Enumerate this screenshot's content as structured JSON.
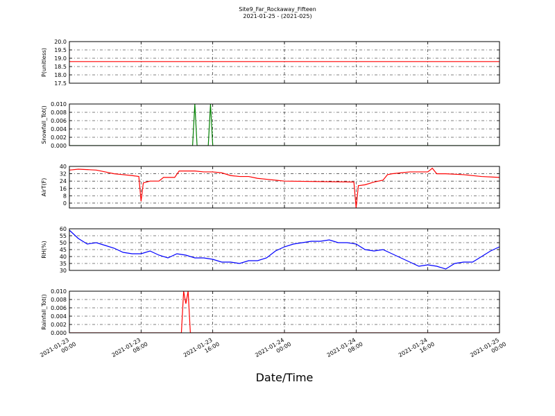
{
  "figure": {
    "title": "Site9_Far_Rockaway_Fifteen",
    "subtitle": "2021-01-25 - (2021-025)",
    "xlabel": "Date/Time"
  },
  "chart_data": [
    {
      "type": "line",
      "ylabel": "P(unitless)",
      "color": "#ff0000",
      "grid": true,
      "x": [
        "2021-01-23 00:00",
        "2021-01-25 00:00"
      ],
      "values": [
        18.8,
        18.8
      ],
      "xlim": [
        "2021-01-23 00:00",
        "2021-01-25 00:00"
      ],
      "xticks": [
        "2021-01-23 00:00",
        "2021-01-23 08:00",
        "2021-01-23 16:00",
        "2021-01-24 00:00",
        "2021-01-24 08:00",
        "2021-01-24 16:00",
        "2021-01-25 00:00"
      ],
      "ylim": [
        17.5,
        20
      ],
      "yticks": [
        17.5,
        {
          "value": 18,
          "label": "18.0"
        },
        18.5,
        {
          "value": 19,
          "label": "19.0"
        },
        19.5,
        {
          "value": 20,
          "label": "20.0"
        }
      ]
    },
    {
      "type": "line",
      "ylabel": "Snowfall_Tot()",
      "color": "#007f00",
      "grid": true,
      "x": [
        "2021-01-23 00:00",
        "2021-01-23 13:45",
        "2021-01-23 14:00",
        "2021-01-23 14:15",
        "2021-01-23 15:30",
        "2021-01-23 15:45",
        "2021-01-23 16:00",
        "2021-01-25 00:00"
      ],
      "values": [
        0,
        0,
        0.01,
        0,
        0,
        0.01,
        0,
        0
      ],
      "xlim": [
        "2021-01-23 00:00",
        "2021-01-25 00:00"
      ],
      "xticks": [
        "2021-01-23 00:00",
        "2021-01-23 08:00",
        "2021-01-23 16:00",
        "2021-01-24 00:00",
        "2021-01-24 08:00",
        "2021-01-24 16:00",
        "2021-01-25 00:00"
      ],
      "ylim": [
        0,
        0.01
      ],
      "yticks": [
        {
          "value": 0,
          "label": "0.000"
        },
        {
          "value": 0.002,
          "label": "0.002"
        },
        {
          "value": 0.004,
          "label": "0.004"
        },
        {
          "value": 0.006,
          "label": "0.006"
        },
        {
          "value": 0.008,
          "label": "0.008"
        },
        {
          "value": 0.01,
          "label": "0.010"
        }
      ]
    },
    {
      "type": "line",
      "ylabel": "AirT(F)",
      "color": "#ff0000",
      "grid": true,
      "x": [
        "2021-01-23 00:00",
        "2021-01-23 01:00",
        "2021-01-23 03:00",
        "2021-01-23 04:00",
        "2021-01-23 05:00",
        "2021-01-23 06:00",
        "2021-01-23 07:00",
        "2021-01-23 07:45",
        "2021-01-23 08:00",
        "2021-01-23 08:15",
        "2021-01-23 09:00",
        "2021-01-23 10:00",
        "2021-01-23 10:30",
        "2021-01-23 11:00",
        "2021-01-23 11:45",
        "2021-01-23 12:15",
        "2021-01-23 13:00",
        "2021-01-23 14:00",
        "2021-01-23 15:00",
        "2021-01-23 16:00",
        "2021-01-23 17:00",
        "2021-01-23 18:00",
        "2021-01-23 19:00",
        "2021-01-23 20:00",
        "2021-01-23 21:00",
        "2021-01-23 22:00",
        "2021-01-23 23:00",
        "2021-01-24 00:00",
        "2021-01-24 07:30",
        "2021-01-24 07:45",
        "2021-01-24 08:00",
        "2021-01-24 08:15",
        "2021-01-24 09:00",
        "2021-01-24 10:00",
        "2021-01-24 11:00",
        "2021-01-24 11:30",
        "2021-01-24 12:00",
        "2021-01-24 13:00",
        "2021-01-24 14:00",
        "2021-01-24 16:00",
        "2021-01-24 16:30",
        "2021-01-24 17:00",
        "2021-01-24 18:00",
        "2021-01-24 20:00",
        "2021-01-24 22:00",
        "2021-01-25 00:00"
      ],
      "values": [
        36,
        37,
        36,
        34,
        32,
        31,
        30,
        29,
        2,
        22,
        24,
        24,
        28,
        28,
        28,
        35,
        35,
        35,
        34,
        34,
        33,
        30,
        29,
        29,
        27,
        26,
        25,
        24,
        23,
        23,
        -5,
        19,
        20,
        23,
        25,
        31,
        32,
        33,
        34,
        34,
        38,
        32,
        32,
        31,
        29,
        28
      ],
      "xlim": [
        "2021-01-23 00:00",
        "2021-01-25 00:00"
      ],
      "xticks": [
        "2021-01-23 00:00",
        "2021-01-23 08:00",
        "2021-01-23 16:00",
        "2021-01-24 00:00",
        "2021-01-24 08:00",
        "2021-01-24 16:00",
        "2021-01-25 00:00"
      ],
      "ylim": [
        -5.3,
        40
      ],
      "yticks": [
        0,
        8,
        16,
        24,
        32,
        40
      ]
    },
    {
      "type": "line",
      "ylabel": "RH(%)",
      "color": "#0000ff",
      "grid": true,
      "x": [
        "2021-01-23 00:00",
        "2021-01-23 01:00",
        "2021-01-23 02:00",
        "2021-01-23 03:00",
        "2021-01-23 04:00",
        "2021-01-23 05:00",
        "2021-01-23 06:00",
        "2021-01-23 07:00",
        "2021-01-23 08:00",
        "2021-01-23 09:00",
        "2021-01-23 10:00",
        "2021-01-23 11:00",
        "2021-01-23 12:00",
        "2021-01-23 13:00",
        "2021-01-23 14:00",
        "2021-01-23 15:00",
        "2021-01-23 16:00",
        "2021-01-23 17:00",
        "2021-01-23 18:00",
        "2021-01-23 19:00",
        "2021-01-23 20:00",
        "2021-01-23 21:00",
        "2021-01-23 22:00",
        "2021-01-23 23:00",
        "2021-01-24 00:00",
        "2021-01-24 01:00",
        "2021-01-24 02:00",
        "2021-01-24 03:00",
        "2021-01-24 04:00",
        "2021-01-24 05:00",
        "2021-01-24 06:00",
        "2021-01-24 07:00",
        "2021-01-24 08:00",
        "2021-01-24 09:00",
        "2021-01-24 10:00",
        "2021-01-24 11:00",
        "2021-01-24 12:00",
        "2021-01-24 13:00",
        "2021-01-24 14:00",
        "2021-01-24 15:00",
        "2021-01-24 16:00",
        "2021-01-24 17:00",
        "2021-01-24 18:00",
        "2021-01-24 19:00",
        "2021-01-24 20:00",
        "2021-01-24 21:00",
        "2021-01-24 22:00",
        "2021-01-24 23:00",
        "2021-01-25 00:00"
      ],
      "values": [
        59,
        53,
        49,
        50,
        48,
        46,
        43,
        42,
        42,
        44,
        41,
        39,
        42,
        41,
        39,
        39,
        38,
        36,
        36,
        35,
        37,
        37,
        39,
        44,
        47,
        49,
        50,
        51,
        51,
        52,
        50,
        50,
        49,
        45,
        44,
        45,
        42,
        39,
        36,
        33,
        34,
        33,
        31,
        35,
        36,
        36,
        40,
        44,
        47
      ],
      "xlim": [
        "2021-01-23 00:00",
        "2021-01-25 00:00"
      ],
      "xticks": [
        "2021-01-23 00:00",
        "2021-01-23 08:00",
        "2021-01-23 16:00",
        "2021-01-24 00:00",
        "2021-01-24 08:00",
        "2021-01-24 16:00",
        "2021-01-25 00:00"
      ],
      "ylim": [
        30,
        60
      ],
      "yticks": [
        30,
        35,
        40,
        45,
        50,
        55,
        60
      ]
    },
    {
      "type": "line",
      "ylabel": "Rainfall_Tot()",
      "color": "#ff0000",
      "grid": true,
      "x": [
        "2021-01-23 00:00",
        "2021-01-23 12:30",
        "2021-01-23 12:45",
        "2021-01-23 13:00",
        "2021-01-23 13:15",
        "2021-01-23 13:30",
        "2021-01-25 00:00"
      ],
      "values": [
        0,
        0,
        0.01,
        0.007,
        0.01,
        0,
        0
      ],
      "xlim": [
        "2021-01-23 00:00",
        "2021-01-25 00:00"
      ],
      "xticks": [
        "2021-01-23 00:00",
        "2021-01-23 08:00",
        "2021-01-23 16:00",
        "2021-01-24 00:00",
        "2021-01-24 08:00",
        "2021-01-24 16:00",
        "2021-01-25 00:00"
      ],
      "ylim": [
        0,
        0.01
      ],
      "yticks": [
        {
          "value": 0,
          "label": "0.000"
        },
        {
          "value": 0.002,
          "label": "0.002"
        },
        {
          "value": 0.004,
          "label": "0.004"
        },
        {
          "value": 0.006,
          "label": "0.006"
        },
        {
          "value": 0.008,
          "label": "0.008"
        },
        {
          "value": 0.01,
          "label": "0.010"
        }
      ]
    }
  ]
}
